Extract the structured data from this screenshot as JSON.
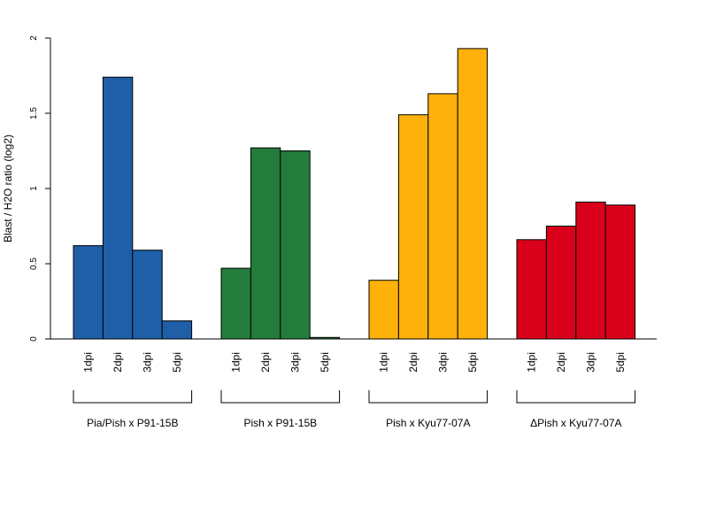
{
  "chart_data": {
    "type": "bar",
    "title": "",
    "xlabel": "",
    "ylabel": "Blast / H2O ratio (log2)",
    "ylim": [
      0,
      2
    ],
    "yticks": [
      "0",
      "0.5",
      "1",
      "1.5",
      "2"
    ],
    "grid": false,
    "legend": "none",
    "groups": [
      {
        "name": "Pia/Pish x P91-15B",
        "color": "#1f5fa8",
        "categories": [
          "1dpi",
          "2dpi",
          "3dpi",
          "5dpi"
        ],
        "values": [
          0.62,
          1.74,
          0.59,
          0.12
        ]
      },
      {
        "name": "Pish x P91-15B",
        "color": "#237c3b",
        "categories": [
          "1dpi",
          "2dpi",
          "3dpi",
          "5dpi"
        ],
        "values": [
          0.47,
          1.27,
          1.25,
          0.01
        ]
      },
      {
        "name": "Pish x Kyu77-07A",
        "color": "#fdb10a",
        "categories": [
          "1dpi",
          "2dpi",
          "3dpi",
          "5dpi"
        ],
        "values": [
          0.39,
          1.49,
          1.63,
          1.93
        ]
      },
      {
        "name": "ΔPish x Kyu77-07A",
        "color": "#d9001b",
        "categories": [
          "1dpi",
          "2dpi",
          "3dpi",
          "5dpi"
        ],
        "values": [
          0.66,
          0.75,
          0.91,
          0.89
        ]
      }
    ]
  }
}
